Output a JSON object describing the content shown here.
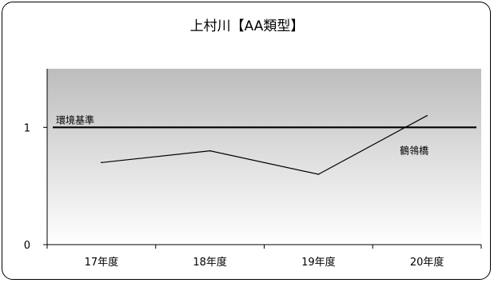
{
  "chart_data": {
    "type": "line",
    "title": "上村川【AA類型】",
    "categories": [
      "17年度",
      "18年度",
      "19年度",
      "20年度"
    ],
    "series": [
      {
        "name": "鶴鴒橋",
        "values": [
          0.7,
          0.8,
          0.6,
          1.1
        ]
      }
    ],
    "reference_line": {
      "label": "環境基準",
      "value": 1
    },
    "y_ticks": [
      "0",
      "1"
    ],
    "ylim": [
      0,
      1.5
    ],
    "xlabel": "",
    "ylabel": "",
    "grid": false,
    "legend": "none",
    "colors": {
      "plot_gradient_top": "#bdbdbd",
      "plot_gradient_bottom": "#ffffff",
      "series_line": "#000000",
      "reference_line": "#000000"
    }
  }
}
